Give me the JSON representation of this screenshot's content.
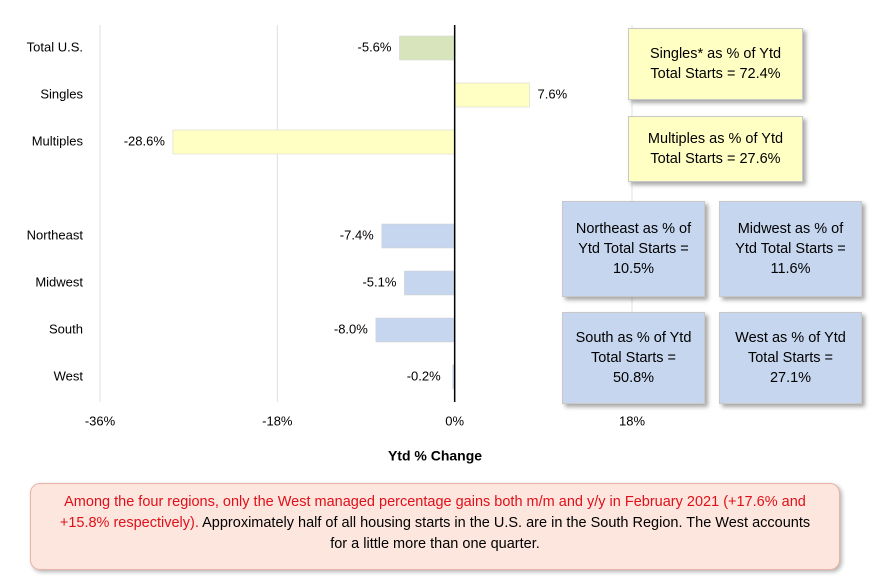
{
  "chart_data": {
    "type": "hbar",
    "categories": [
      "Total U.S.",
      "Singles",
      "Multiples",
      null,
      "Northeast",
      "Midwest",
      "South",
      "West"
    ],
    "values": [
      -5.6,
      7.6,
      -28.6,
      null,
      -7.4,
      -5.1,
      -8.0,
      -0.2
    ],
    "value_labels": [
      "-5.6%",
      "7.6%",
      "-28.6%",
      null,
      "-7.4%",
      "-5.1%",
      "-8.0%",
      "-0.2%"
    ],
    "colors": [
      "#d8e4bc",
      "#ffffc4",
      "#ffffc4",
      null,
      "#c6d6ee",
      "#c6d6ee",
      "#c6d6ee",
      "#c6d6ee"
    ],
    "xlim": [
      -36,
      18
    ],
    "xticks": [
      {
        "value": -36,
        "label": "-36%"
      },
      {
        "value": -18,
        "label": "-18%"
      },
      {
        "value": 0,
        "label": "0%"
      },
      {
        "value": 18,
        "label": "18%"
      }
    ],
    "grid": true,
    "xlabel": "Ytd % Change",
    "annotations": [
      {
        "text": "Singles* as % of Ytd Total Starts = 72.4%",
        "color": "#ffffc4"
      },
      {
        "text": "Multiples as % of Ytd Total Starts = 27.6%",
        "color": "#ffffc4"
      },
      {
        "text": "Northeast as % of Ytd Total Starts = 10.5%",
        "color": "#c6d6ee"
      },
      {
        "text": "Midwest as % of Ytd Total Starts = 11.6%",
        "color": "#c6d6ee"
      },
      {
        "text": "South as % of Ytd Total Starts = 50.8%",
        "color": "#c6d6ee"
      },
      {
        "text": "West as % of Ytd Total Starts = 27.1%",
        "color": "#c6d6ee"
      }
    ],
    "note": {
      "highlight": "Among the four regions, only the West managed percentage gains both m/m and y/y in February 2021 (+17.6% and +15.8% respectively).",
      "text": "Approximately half of all housing starts in the U.S. are in the South Region. The West accounts for a little more than one quarter."
    }
  }
}
